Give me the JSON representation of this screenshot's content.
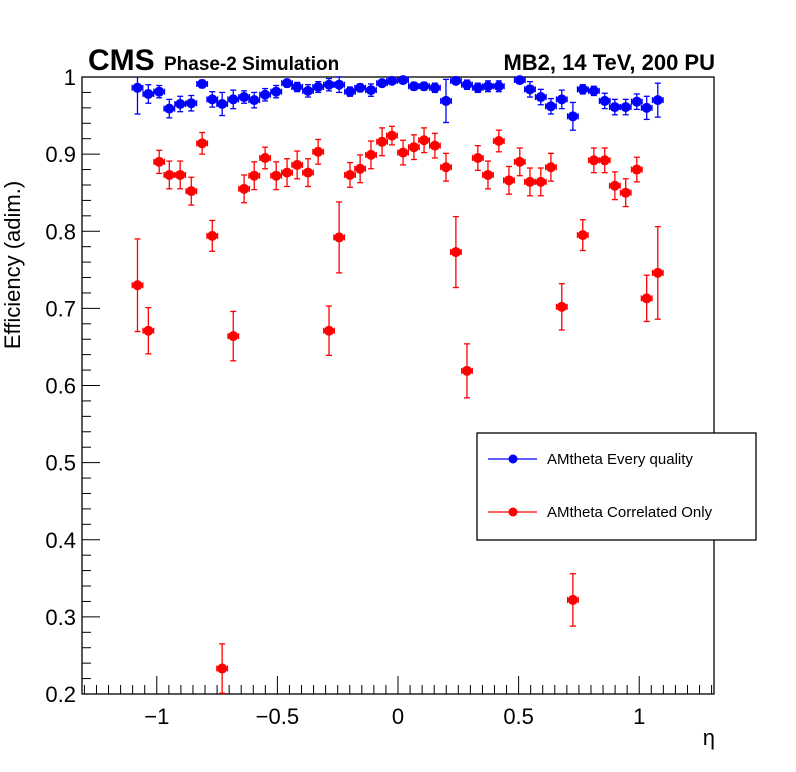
{
  "chart_data": {
    "type": "scatter",
    "title": "",
    "header_left_bold": "CMS",
    "header_left_sub": "Phase-2 Simulation",
    "header_right": "MB2, 14 TeV, 200 PU",
    "xlabel": "η",
    "ylabel": "Efficiency (adim.)",
    "xlim": [
      -1.31,
      1.31
    ],
    "ylim": [
      0.2,
      1.0
    ],
    "xticks": [
      -1,
      -0.5,
      0,
      0.5,
      1
    ],
    "xtick_labels": [
      "−1",
      "−0.5",
      "0",
      "0.5",
      "1"
    ],
    "yticks": [
      0.2,
      0.3,
      0.4,
      0.5,
      0.6,
      0.7,
      0.8,
      0.9,
      1.0
    ],
    "ytick_labels": [
      "0.2",
      "0.3",
      "0.4",
      "0.5",
      "0.6",
      "0.7",
      "0.8",
      "0.9",
      "1"
    ],
    "grid": false,
    "legend_position": "right-middle",
    "x_bin_half_width": 0.022,
    "series": [
      {
        "name": "AMtheta Every quality",
        "color": "#0000ff",
        "x": [
          -1.08,
          -1.035,
          -0.99,
          -0.948,
          -0.903,
          -0.857,
          -0.812,
          -0.77,
          -0.729,
          -0.683,
          -0.638,
          -0.596,
          -0.551,
          -0.505,
          -0.46,
          -0.418,
          -0.373,
          -0.331,
          -0.286,
          -0.244,
          -0.199,
          -0.157,
          -0.112,
          -0.066,
          -0.025,
          0.021,
          0.066,
          0.108,
          0.153,
          0.199,
          0.24,
          0.286,
          0.331,
          0.373,
          0.418,
          0.505,
          0.547,
          0.592,
          0.634,
          0.679,
          0.725,
          0.766,
          0.812,
          0.857,
          0.899,
          0.944,
          0.99,
          1.031,
          1.077
        ],
        "y": [
          0.986,
          0.978,
          0.981,
          0.959,
          0.965,
          0.966,
          0.991,
          0.971,
          0.965,
          0.971,
          0.974,
          0.97,
          0.977,
          0.981,
          0.992,
          0.987,
          0.982,
          0.987,
          0.99,
          0.99,
          0.981,
          0.986,
          0.983,
          0.992,
          0.995,
          0.996,
          0.988,
          0.988,
          0.986,
          0.969,
          0.995,
          0.99,
          0.986,
          0.988,
          0.988,
          0.996,
          0.984,
          0.974,
          0.962,
          0.971,
          0.949,
          0.984,
          0.982,
          0.969,
          0.961,
          0.961,
          0.968,
          0.96,
          0.97
        ],
        "yerr": [
          0.034,
          0.012,
          0.008,
          0.012,
          0.01,
          0.01,
          0.005,
          0.01,
          0.015,
          0.012,
          0.008,
          0.01,
          0.008,
          0.008,
          0.005,
          0.006,
          0.008,
          0.007,
          0.008,
          0.01,
          0.006,
          0.005,
          0.008,
          0.004,
          0.003,
          0.003,
          0.005,
          0.005,
          0.006,
          0.028,
          0.004,
          0.006,
          0.006,
          0.007,
          0.007,
          0.003,
          0.01,
          0.01,
          0.01,
          0.012,
          0.018,
          0.006,
          0.006,
          0.01,
          0.01,
          0.01,
          0.01,
          0.015,
          0.022
        ]
      },
      {
        "name": "AMtheta Correlated Only",
        "color": "#ff0000",
        "x": [
          -1.08,
          -1.035,
          -0.99,
          -0.948,
          -0.903,
          -0.857,
          -0.812,
          -0.77,
          -0.729,
          -0.683,
          -0.638,
          -0.596,
          -0.551,
          -0.505,
          -0.46,
          -0.418,
          -0.373,
          -0.331,
          -0.286,
          -0.244,
          -0.199,
          -0.157,
          -0.112,
          -0.066,
          -0.025,
          0.021,
          0.066,
          0.108,
          0.153,
          0.199,
          0.24,
          0.286,
          0.331,
          0.373,
          0.418,
          0.46,
          0.505,
          0.547,
          0.592,
          0.634,
          0.679,
          0.725,
          0.766,
          0.812,
          0.857,
          0.899,
          0.944,
          0.99,
          1.031,
          1.077
        ],
        "y": [
          0.73,
          0.671,
          0.89,
          0.873,
          0.873,
          0.852,
          0.914,
          0.794,
          0.233,
          0.664,
          0.855,
          0.872,
          0.895,
          0.872,
          0.876,
          0.886,
          0.876,
          0.903,
          0.671,
          0.792,
          0.873,
          0.881,
          0.899,
          0.916,
          0.924,
          0.902,
          0.909,
          0.918,
          0.911,
          0.883,
          0.773,
          0.619,
          0.895,
          0.873,
          0.917,
          0.866,
          0.89,
          0.864,
          0.864,
          0.883,
          0.702,
          0.322,
          0.795,
          0.892,
          0.892,
          0.859,
          0.85,
          0.88,
          0.713,
          0.746
        ],
        "yerr": [
          0.06,
          0.03,
          0.015,
          0.018,
          0.018,
          0.018,
          0.014,
          0.02,
          0.032,
          0.032,
          0.018,
          0.018,
          0.014,
          0.018,
          0.018,
          0.018,
          0.018,
          0.016,
          0.032,
          0.046,
          0.016,
          0.018,
          0.018,
          0.018,
          0.012,
          0.016,
          0.016,
          0.016,
          0.016,
          0.018,
          0.046,
          0.035,
          0.016,
          0.018,
          0.014,
          0.018,
          0.018,
          0.018,
          0.018,
          0.018,
          0.03,
          0.034,
          0.02,
          0.016,
          0.016,
          0.018,
          0.018,
          0.016,
          0.03,
          0.06
        ]
      }
    ]
  }
}
